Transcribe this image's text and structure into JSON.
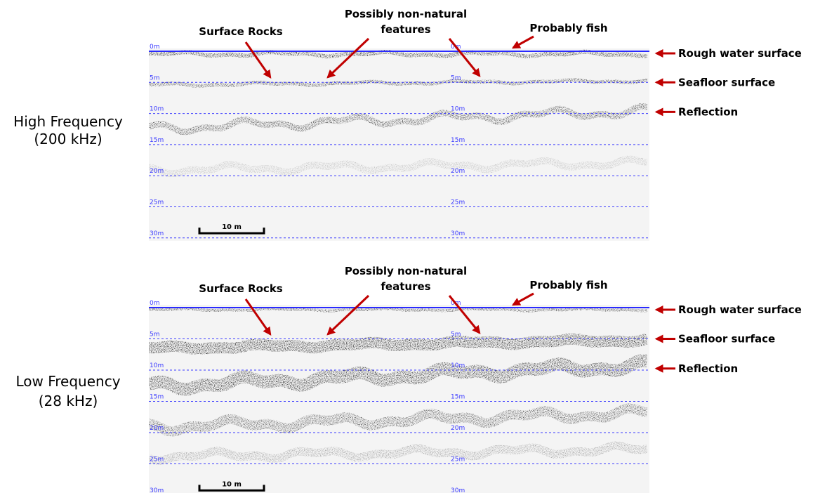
{
  "panels": [
    {
      "label": [
        "High Frequency",
        "(200 kHz)"
      ],
      "depth_labels": [
        "0m",
        "5m",
        "10m",
        "15m",
        "20m",
        "25m",
        "30m"
      ],
      "scale_bar": "10 m",
      "annotations": {
        "surface_rocks": "Surface Rocks",
        "non_natural": [
          "Possibly non-natural",
          "features"
        ],
        "fish": "Probably fish"
      },
      "right_labels": [
        "Rough water surface",
        "Seafloor surface",
        "Reflection"
      ]
    },
    {
      "label": [
        "Low Frequency",
        "(28 kHz)"
      ],
      "depth_labels": [
        "0m",
        "5m",
        "10m",
        "15m",
        "20m",
        "25m",
        "30m"
      ],
      "scale_bar": "10 m",
      "annotations": {
        "surface_rocks": "Surface Rocks",
        "non_natural": [
          "Possibly non-natural",
          "features"
        ],
        "fish": "Probably fish"
      },
      "right_labels": [
        "Rough water surface",
        "Seafloor surface",
        "Reflection"
      ]
    }
  ]
}
